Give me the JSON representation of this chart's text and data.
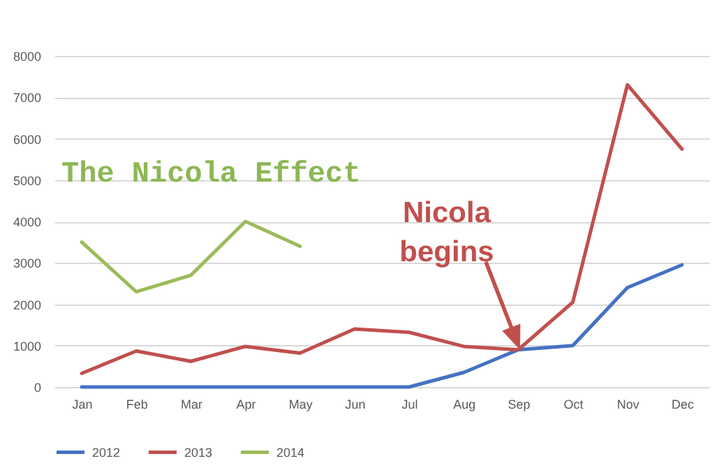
{
  "chart_data": {
    "type": "line",
    "categories": [
      "Jan",
      "Feb",
      "Mar",
      "Apr",
      "May",
      "Jun",
      "Jul",
      "Aug",
      "Sep",
      "Oct",
      "Nov",
      "Dec"
    ],
    "series": [
      {
        "name": "2012",
        "color": "#4472c4",
        "values": [
          0,
          0,
          0,
          0,
          0,
          0,
          0,
          350,
          900,
          1000,
          2400,
          2950
        ]
      },
      {
        "name": "2013",
        "color": "#c0504d",
        "values": [
          330,
          870,
          620,
          980,
          820,
          1400,
          1320,
          980,
          900,
          2050,
          7300,
          5750
        ]
      },
      {
        "name": "2014",
        "color": "#9bbb59",
        "values": [
          3500,
          2300,
          2700,
          4000,
          3400,
          null,
          null,
          null,
          null,
          null,
          null,
          null
        ]
      }
    ],
    "ylim": [
      0,
      8000
    ],
    "yticks": [
      0,
      1000,
      2000,
      3000,
      4000,
      5000,
      6000,
      7000,
      8000
    ],
    "grid": "y",
    "legend": "bottom",
    "annotations": [
      "The Nicola Effect",
      "Nicola begins"
    ]
  }
}
